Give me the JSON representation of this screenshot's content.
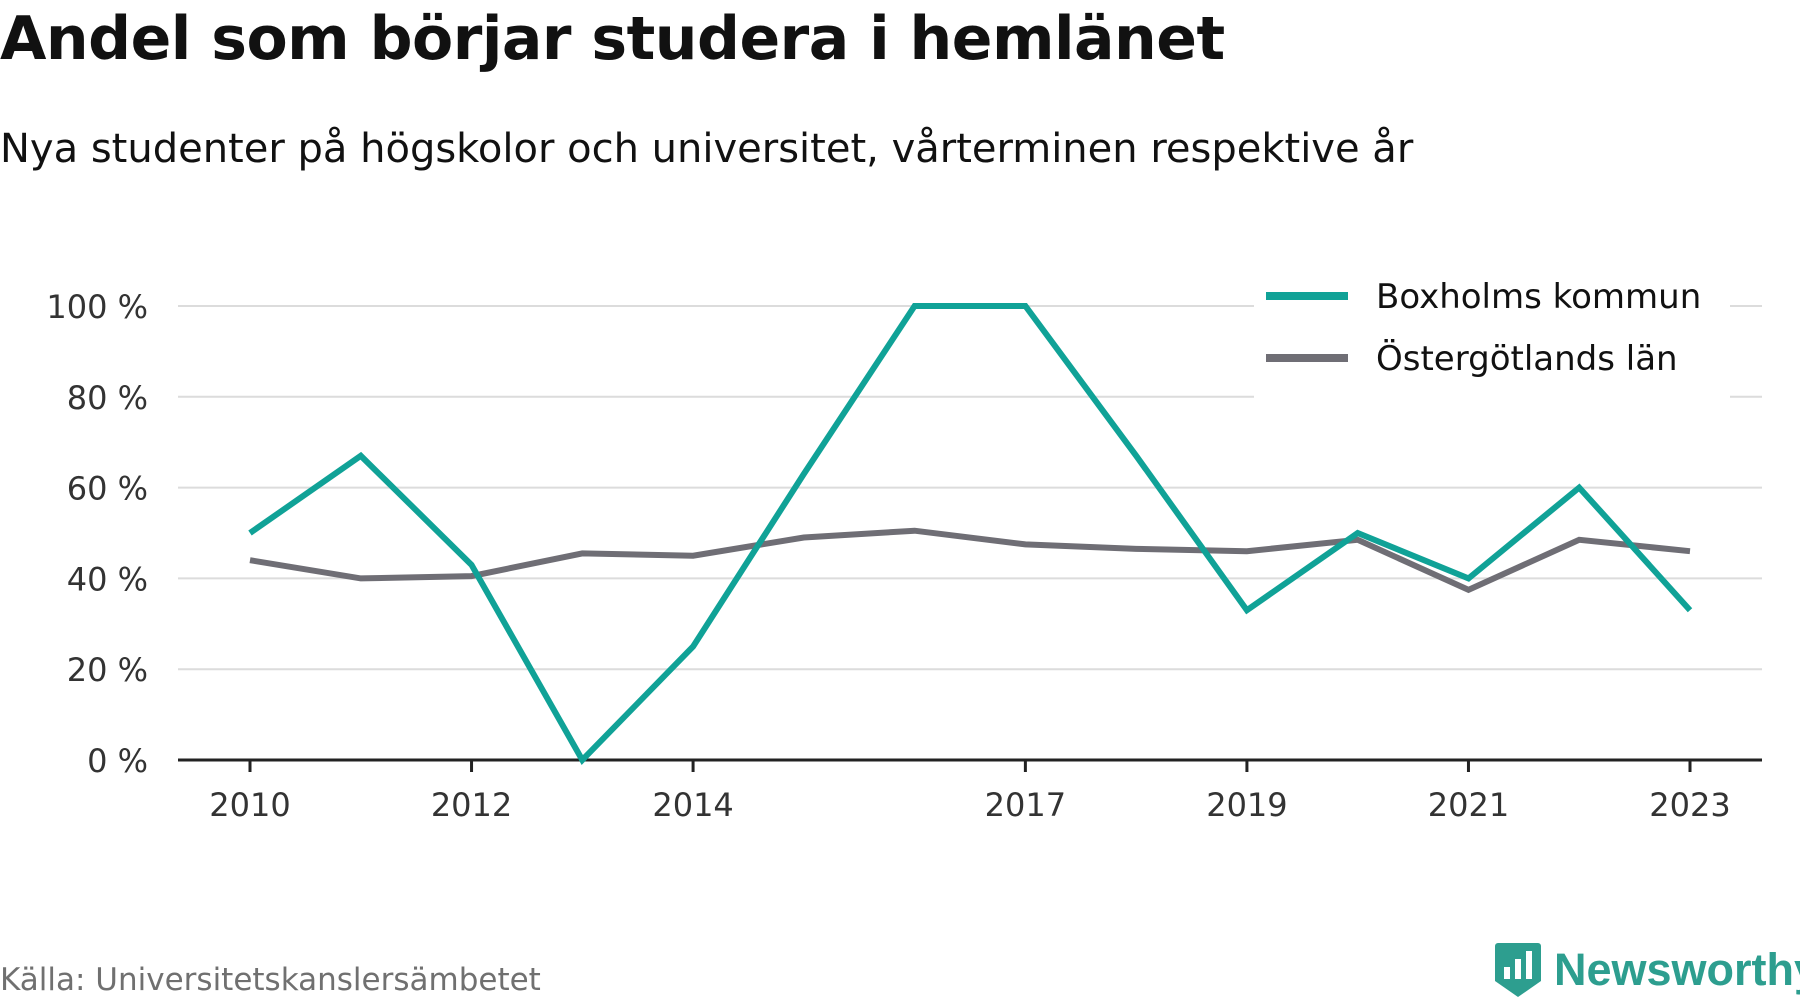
{
  "title": "Andel som börjar studera i hemlänet",
  "subtitle": "Nya studenter på högskolor och universitet, vårterminen respektive år",
  "source": "Källa: Universitetskanslersämbetet",
  "brand": {
    "name": "Newsworthy",
    "icon": "newsworthy-logo-icon",
    "color": "#2d9e8f"
  },
  "chart_data": {
    "type": "line",
    "x": [
      2010,
      2011,
      2012,
      2013,
      2014,
      2015,
      2016,
      2017,
      2018,
      2019,
      2020,
      2021,
      2022,
      2023
    ],
    "x_tick_labels": [
      "2010",
      "2012",
      "2014",
      "2017",
      "2019",
      "2021",
      "2023"
    ],
    "x_tick_values": [
      2010,
      2012,
      2014,
      2017,
      2019,
      2021,
      2023
    ],
    "y_tick_labels": [
      "0 %",
      "20 %",
      "40 %",
      "60 %",
      "80 %",
      "100 %"
    ],
    "y_tick_values": [
      0,
      20,
      40,
      60,
      80,
      100
    ],
    "ylim": [
      0,
      100
    ],
    "xlim": [
      2009.35,
      2023.65
    ],
    "grid": true,
    "legend_position": "top-right",
    "series": [
      {
        "name": "Boxholms kommun",
        "color": "#10a297",
        "values": [
          50,
          67,
          43,
          0,
          25,
          63,
          100,
          100,
          67,
          33,
          50,
          40,
          60,
          33
        ]
      },
      {
        "name": "Östergötlands län",
        "color": "#6f6e75",
        "values": [
          44,
          40,
          40.5,
          45.5,
          45,
          49,
          50.5,
          47.5,
          46.5,
          46,
          48.5,
          37.5,
          48.5,
          46
        ]
      }
    ]
  }
}
